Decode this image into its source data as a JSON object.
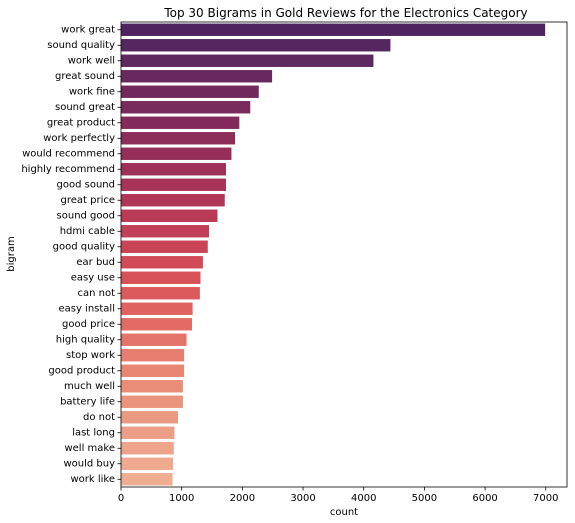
{
  "chart_data": {
    "type": "bar",
    "orientation": "horizontal",
    "title": "Top 30 Bigrams in Gold Reviews for the Electronics Category",
    "xlabel": "count",
    "ylabel": "bigram",
    "xlim": [
      0,
      7350
    ],
    "xticks": [
      "0",
      "1000",
      "2000",
      "3000",
      "4000",
      "5000",
      "6000",
      "7000"
    ],
    "grid": false,
    "palette": "flare",
    "categories": [
      "work great",
      "sound quality",
      "work well",
      "great sound",
      "work fine",
      "sound great",
      "great product",
      "work perfectly",
      "would recommend",
      "highly recommend",
      "good sound",
      "great price",
      "sound good",
      "hdmi cable",
      "good quality",
      "ear bud",
      "easy use",
      "can not",
      "easy install",
      "good price",
      "high quality",
      "stop work",
      "good product",
      "much well",
      "battery life",
      "do not",
      "last long",
      "well make",
      "would buy",
      "work like"
    ],
    "values": [
      6990,
      4440,
      4160,
      2490,
      2270,
      2130,
      1950,
      1880,
      1820,
      1730,
      1730,
      1710,
      1590,
      1450,
      1430,
      1350,
      1310,
      1300,
      1180,
      1170,
      1080,
      1040,
      1040,
      1020,
      1020,
      940,
      880,
      870,
      860,
      850
    ],
    "colors": [
      "#4d2460",
      "#56275f",
      "#5e295f",
      "#67295e",
      "#71285c",
      "#792a5c",
      "#832c5b",
      "#8c2d5a",
      "#952f5a",
      "#9e3159",
      "#a73358",
      "#b03657",
      "#b83a57",
      "#c13f57",
      "#c94457",
      "#d04a57",
      "#d65158",
      "#db5a5c",
      "#df6260",
      "#e26b64",
      "#e47469",
      "#e67d6e",
      "#e88573",
      "#e98c78",
      "#ea937d",
      "#eb9a82",
      "#ec9f86",
      "#eda48a",
      "#eea98e",
      "#efae92"
    ]
  }
}
